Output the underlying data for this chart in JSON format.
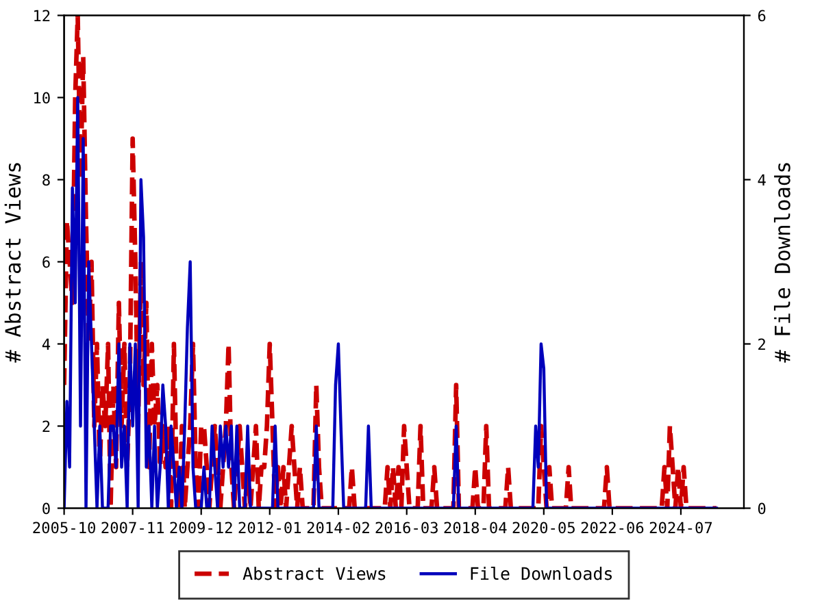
{
  "chart_data": {
    "type": "line",
    "ylabel": "# Abstract Views",
    "y2label": "# File Downloads",
    "legend": "bottom",
    "grid": false,
    "marker": "none",
    "xlim": [
      "2005-10",
      "2026-06"
    ],
    "xticks": [
      "2005-10",
      "2007-11",
      "2009-12",
      "2012-01",
      "2014-02",
      "2016-03",
      "2018-04",
      "2020-05",
      "2022-06",
      "2024-07"
    ],
    "ylim": [
      0,
      12
    ],
    "yticks": [
      0,
      2,
      4,
      6,
      8,
      10,
      12
    ],
    "y2lim": [
      0,
      6
    ],
    "y2ticks": [
      0,
      2,
      4,
      6
    ],
    "series": [
      {
        "name": "Abstract Views",
        "color": "#cc0000",
        "line_style": "dashed",
        "x": [
          "2005-10",
          "2005-11",
          "2006-01",
          "2006-02",
          "2006-03",
          "2006-04",
          "2006-05",
          "2006-06",
          "2006-07",
          "2006-08",
          "2006-09",
          "2006-10",
          "2006-11",
          "2006-12",
          "2007-01",
          "2007-02",
          "2007-03",
          "2007-04",
          "2007-05",
          "2007-06",
          "2007-07",
          "2007-08",
          "2007-09",
          "2007-10",
          "2007-11",
          "2007-12",
          "2008-01",
          "2008-02",
          "2008-03",
          "2008-04",
          "2008-05",
          "2008-06",
          "2008-07",
          "2008-08",
          "2008-09",
          "2008-10",
          "2008-11",
          "2008-12",
          "2009-01",
          "2009-02",
          "2009-03",
          "2009-04",
          "2009-05",
          "2009-06",
          "2009-07",
          "2009-08",
          "2009-09",
          "2009-10",
          "2009-11",
          "2009-12",
          "2010-01",
          "2010-02",
          "2010-03",
          "2010-04",
          "2010-05",
          "2010-06",
          "2010-07",
          "2010-08",
          "2010-09",
          "2010-10",
          "2010-11",
          "2010-12",
          "2011-01",
          "2011-02",
          "2011-03",
          "2011-04",
          "2011-05",
          "2011-06",
          "2011-07",
          "2011-08",
          "2011-09",
          "2011-10",
          "2011-11",
          "2011-12",
          "2012-01",
          "2012-02",
          "2012-03",
          "2012-04",
          "2012-05",
          "2012-06",
          "2012-07",
          "2012-08",
          "2012-09",
          "2012-10",
          "2012-11",
          "2012-12",
          "2013-01",
          "2013-05",
          "2013-06",
          "2013-07",
          "2013-08",
          "2014-06",
          "2014-07",
          "2014-08",
          "2015-07",
          "2015-08",
          "2015-09",
          "2015-10",
          "2015-11",
          "2015-12",
          "2016-01",
          "2016-02",
          "2016-03",
          "2016-04",
          "2016-07",
          "2016-08",
          "2016-09",
          "2016-12",
          "2017-01",
          "2017-02",
          "2017-08",
          "2017-09",
          "2017-10",
          "2018-03",
          "2018-04",
          "2018-05",
          "2018-07",
          "2018-08",
          "2018-09",
          "2019-03",
          "2019-04",
          "2019-05",
          "2020-03",
          "2020-04",
          "2020-05",
          "2020-06",
          "2020-07",
          "2020-08",
          "2021-01",
          "2021-02",
          "2021-03",
          "2022-03",
          "2022-04",
          "2022-05",
          "2023-12",
          "2024-01",
          "2024-02",
          "2024-03",
          "2024-04",
          "2024-05",
          "2024-06",
          "2024-07",
          "2024-08",
          "2024-09",
          "2025-08"
        ],
        "values": [
          3,
          7,
          5,
          10,
          12,
          8,
          11,
          7,
          4,
          6,
          2,
          4,
          1,
          3,
          2,
          4,
          0,
          3,
          1,
          5,
          2,
          4,
          1,
          3,
          9,
          6,
          2,
          6,
          3,
          5,
          1,
          4,
          2,
          3,
          1,
          2,
          1,
          2,
          0,
          4,
          1,
          0,
          2,
          0,
          1,
          2,
          4,
          1,
          0,
          2,
          2,
          1,
          0,
          1,
          2,
          1,
          0,
          1,
          2,
          4,
          1,
          0,
          1,
          2,
          1,
          0,
          1,
          0,
          1,
          2,
          0,
          1,
          1,
          2,
          4,
          2,
          0,
          1,
          0,
          1,
          0,
          1,
          2,
          1,
          0,
          1,
          0,
          0,
          3,
          1,
          0,
          0,
          1,
          0,
          0,
          1,
          0,
          1,
          0,
          1,
          0,
          2,
          1,
          0,
          0,
          2,
          0,
          0,
          1,
          0,
          0,
          3,
          0,
          0,
          1,
          0,
          0,
          2,
          0,
          0,
          1,
          0,
          0,
          2,
          1,
          0,
          1,
          0,
          0,
          1,
          0,
          0,
          1,
          0,
          0,
          1,
          0,
          2,
          1,
          0,
          1,
          0,
          1,
          0,
          0
        ]
      },
      {
        "name": "File Downloads",
        "color": "#0000bb",
        "line_style": "solid",
        "axis": "y2",
        "x": [
          "2005-10",
          "2005-11",
          "2005-12",
          "2006-01",
          "2006-02",
          "2006-03",
          "2006-04",
          "2006-05",
          "2006-06",
          "2006-07",
          "2006-08",
          "2006-09",
          "2006-10",
          "2006-11",
          "2006-12",
          "2007-02",
          "2007-03",
          "2007-04",
          "2007-05",
          "2007-06",
          "2007-07",
          "2007-08",
          "2007-09",
          "2007-10",
          "2007-11",
          "2007-12",
          "2008-01",
          "2008-02",
          "2008-03",
          "2008-04",
          "2008-05",
          "2008-06",
          "2008-07",
          "2008-08",
          "2008-09",
          "2008-10",
          "2008-11",
          "2008-12",
          "2009-01",
          "2009-02",
          "2009-03",
          "2009-04",
          "2009-05",
          "2009-06",
          "2009-07",
          "2009-08",
          "2009-09",
          "2009-10",
          "2009-12",
          "2010-01",
          "2010-02",
          "2010-03",
          "2010-04",
          "2010-05",
          "2010-06",
          "2010-07",
          "2010-08",
          "2010-09",
          "2010-10",
          "2010-11",
          "2010-12",
          "2011-01",
          "2011-02",
          "2011-04",
          "2011-05",
          "2011-06",
          "2012-02",
          "2012-03",
          "2012-04",
          "2013-05",
          "2013-06",
          "2013-07",
          "2013-12",
          "2014-01",
          "2014-02",
          "2014-03",
          "2014-04",
          "2014-12",
          "2015-01",
          "2015-02",
          "2017-08",
          "2017-09",
          "2017-10",
          "2020-01",
          "2020-02",
          "2020-03",
          "2020-04",
          "2020-05",
          "2020-06",
          "2025-08"
        ],
        "values": [
          0,
          1.3,
          0.5,
          3.9,
          2.5,
          5,
          1,
          4.5,
          0,
          3,
          2,
          1,
          0,
          1,
          0,
          0,
          1,
          1,
          0.5,
          2,
          0.5,
          1,
          0,
          2,
          1,
          2,
          0,
          4,
          3.3,
          0.5,
          1,
          0,
          1,
          0,
          0.5,
          1.5,
          1,
          0,
          1,
          0.5,
          0,
          0.5,
          0,
          1,
          2.2,
          3,
          0.5,
          0,
          0,
          0.5,
          0,
          0,
          1,
          0.5,
          0,
          1,
          0.5,
          1,
          0.5,
          1,
          0,
          1,
          0,
          0,
          1,
          0,
          0,
          1,
          0,
          0,
          1,
          0,
          0,
          1.5,
          2,
          1,
          0,
          0,
          1,
          0,
          0,
          1,
          0,
          0,
          1,
          0.5,
          2,
          1.7,
          0,
          0
        ]
      }
    ]
  }
}
